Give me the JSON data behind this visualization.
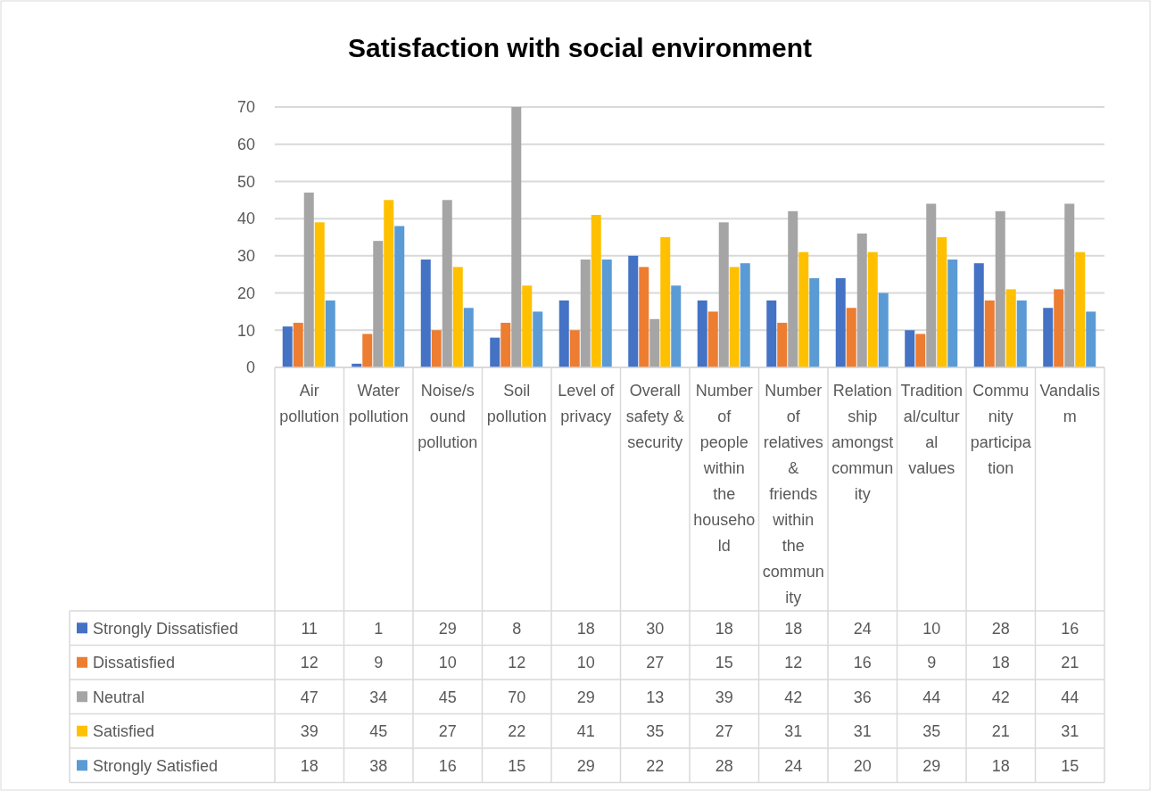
{
  "chart_data": {
    "type": "bar",
    "title": "Satisfaction with social environment",
    "categories": [
      "Air pollution",
      "Water pollution",
      "Noise/sound pollution",
      "Soil pollution",
      "Level of privacy",
      "Overall safety & security",
      "Number of people within the household",
      "Number of relatives & friends within the community",
      "Relationship amongst community",
      "Traditional/cultural values",
      "Community participation",
      "Vandalism"
    ],
    "series": [
      {
        "name": "Strongly Dissatisfied",
        "color": "#4472c4",
        "values": [
          11,
          1,
          29,
          8,
          18,
          30,
          18,
          18,
          24,
          10,
          28,
          16
        ]
      },
      {
        "name": "Dissatisfied",
        "color": "#ed7d31",
        "values": [
          12,
          9,
          10,
          12,
          10,
          27,
          15,
          12,
          16,
          9,
          18,
          21
        ]
      },
      {
        "name": "Neutral",
        "color": "#a5a5a5",
        "values": [
          47,
          34,
          45,
          70,
          29,
          13,
          39,
          42,
          36,
          44,
          42,
          44
        ]
      },
      {
        "name": "Satisfied",
        "color": "#ffc000",
        "values": [
          39,
          45,
          27,
          22,
          41,
          35,
          27,
          31,
          31,
          35,
          21,
          31
        ]
      },
      {
        "name": "Strongly Satisfied",
        "color": "#5b9bd5",
        "values": [
          18,
          38,
          16,
          15,
          29,
          22,
          28,
          24,
          20,
          29,
          18,
          15
        ]
      }
    ],
    "ylim": [
      0,
      70
    ],
    "yticks": [
      0,
      10,
      20,
      30,
      40,
      50,
      60,
      70
    ],
    "grid": "y",
    "legend": "bottom",
    "data_labels": true
  }
}
